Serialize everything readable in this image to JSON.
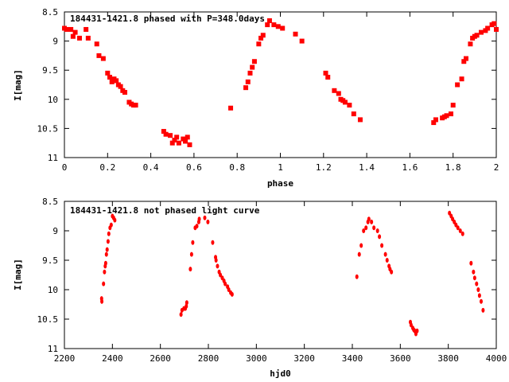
{
  "chart_data": [
    {
      "type": "scatter",
      "title": "184431-1421.8 phased with P=348.0days",
      "xlabel": "phase",
      "ylabel": "I[mag]",
      "xlim": [
        0,
        2
      ],
      "ylim": [
        11,
        8.5
      ],
      "y_inverted": true,
      "xticks": [
        "0",
        "0.2",
        "0.4",
        "0.6",
        "0.8",
        "1",
        "1.2",
        "1.4",
        "1.6",
        "1.8",
        "2"
      ],
      "yticks": [
        "8.5",
        "9",
        "9.5",
        "10",
        "10.5",
        "11"
      ],
      "grid": false,
      "marker_color": "#ff0000",
      "series": [
        {
          "x": [
            0.0,
            0.01,
            0.03,
            0.04,
            0.05,
            0.07,
            0.1,
            0.11,
            0.15,
            0.16,
            0.18,
            0.2,
            0.21,
            0.22,
            0.23,
            0.24,
            0.25,
            0.26,
            0.27,
            0.28,
            0.3,
            0.31,
            0.32,
            0.33,
            0.46,
            0.47,
            0.49,
            0.5,
            0.51,
            0.52,
            0.53,
            0.55,
            0.56,
            0.57,
            0.58,
            0.77,
            0.84,
            0.85,
            0.86,
            0.87,
            0.88,
            0.9,
            0.91,
            0.92,
            0.94,
            0.95,
            0.97,
            0.99,
            1.01,
            1.07,
            1.1,
            1.21,
            1.22,
            1.25,
            1.27,
            1.28,
            1.29,
            1.3,
            1.32,
            1.34,
            1.37,
            1.71,
            1.72,
            1.75,
            1.76,
            1.77,
            1.79,
            1.8,
            1.82,
            1.84,
            1.85,
            1.86,
            1.88,
            1.89,
            1.9,
            1.91,
            1.93,
            1.95,
            1.96,
            1.98,
            1.99,
            2.0
          ],
          "y": [
            8.78,
            8.8,
            8.8,
            8.92,
            8.85,
            8.95,
            8.8,
            8.95,
            9.05,
            9.25,
            9.3,
            9.55,
            9.62,
            9.7,
            9.65,
            9.68,
            9.75,
            9.78,
            9.85,
            9.88,
            10.05,
            10.08,
            10.1,
            10.1,
            10.55,
            10.6,
            10.62,
            10.75,
            10.7,
            10.65,
            10.75,
            10.68,
            10.72,
            10.65,
            10.78,
            10.15,
            9.8,
            9.7,
            9.55,
            9.45,
            9.35,
            9.05,
            8.95,
            8.9,
            8.72,
            8.65,
            8.72,
            8.75,
            8.78,
            8.88,
            9.0,
            9.55,
            9.62,
            9.85,
            9.9,
            10.0,
            10.02,
            10.05,
            10.1,
            10.25,
            10.35,
            10.4,
            10.35,
            10.32,
            10.3,
            10.28,
            10.25,
            10.1,
            9.75,
            9.65,
            9.35,
            9.3,
            9.05,
            8.95,
            8.92,
            8.9,
            8.85,
            8.82,
            8.78,
            8.72,
            8.7,
            8.8
          ]
        }
      ]
    },
    {
      "type": "scatter",
      "title": "184431-1421.8 not phased light curve",
      "xlabel": "hjd0",
      "ylabel": "I[mag]",
      "xlim": [
        2200,
        4000
      ],
      "ylim": [
        11,
        8.5
      ],
      "y_inverted": true,
      "xticks": [
        "2200",
        "2400",
        "2600",
        "2800",
        "3000",
        "3200",
        "3400",
        "3600",
        "3800",
        "4000"
      ],
      "yticks": [
        "8.5",
        "9",
        "9.5",
        "10",
        "10.5",
        "11"
      ],
      "grid": false,
      "marker_color": "#ff0000",
      "series": [
        {
          "x": [
            2355,
            2356,
            2363,
            2367,
            2370,
            2372,
            2375,
            2378,
            2382,
            2385,
            2390,
            2395,
            2400,
            2405,
            2410,
            2686,
            2690,
            2698,
            2704,
            2708,
            2710,
            2725,
            2730,
            2735,
            2745,
            2752,
            2760,
            2762,
            2785,
            2798,
            2818,
            2830,
            2832,
            2838,
            2845,
            2850,
            2858,
            2865,
            2870,
            2880,
            2885,
            2893,
            2899,
            3419,
            3429,
            3437,
            3447,
            3457,
            3465,
            3469,
            3480,
            3490,
            3505,
            3513,
            3523,
            3538,
            3545,
            3553,
            3557,
            3563,
            3642,
            3645,
            3652,
            3656,
            3660,
            3665,
            3670,
            3805,
            3812,
            3818,
            3825,
            3832,
            3840,
            3850,
            3860,
            3895,
            3905,
            3910,
            3918,
            3925,
            3930,
            3937,
            3945
          ],
          "y": [
            10.15,
            10.2,
            9.9,
            9.7,
            9.6,
            9.55,
            9.4,
            9.32,
            9.18,
            9.05,
            8.95,
            8.9,
            8.75,
            8.78,
            8.82,
            10.42,
            10.35,
            10.32,
            10.32,
            10.28,
            10.22,
            9.65,
            9.4,
            9.2,
            8.95,
            8.92,
            8.85,
            8.8,
            8.78,
            8.85,
            9.2,
            9.45,
            9.5,
            9.6,
            9.7,
            9.75,
            9.8,
            9.85,
            9.9,
            9.95,
            10.0,
            10.05,
            10.08,
            9.78,
            9.4,
            9.25,
            9.0,
            8.95,
            8.85,
            8.8,
            8.85,
            8.95,
            9.0,
            9.1,
            9.25,
            9.4,
            9.5,
            9.6,
            9.65,
            9.7,
            10.55,
            10.6,
            10.65,
            10.68,
            10.7,
            10.75,
            10.7,
            8.7,
            8.75,
            8.8,
            8.85,
            8.9,
            8.95,
            9.0,
            9.05,
            9.55,
            9.7,
            9.8,
            9.9,
            10.0,
            10.1,
            10.2,
            10.35
          ]
        }
      ]
    }
  ]
}
